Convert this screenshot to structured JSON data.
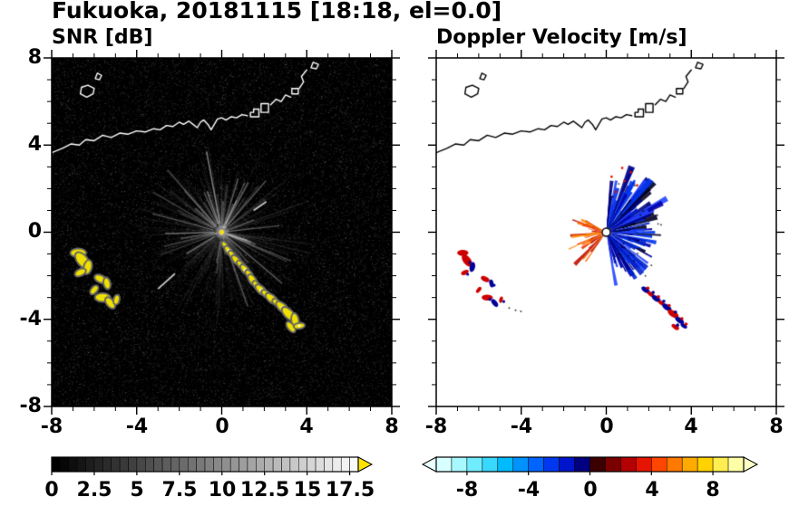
{
  "title": "Fukuoka, 20181115 [18:18, el=0.0]",
  "panels": [
    {
      "title": "SNR [dB]"
    },
    {
      "title": "Doppler Velocity [m/s]"
    }
  ],
  "axes": {
    "xlim": [
      -8,
      8
    ],
    "ylim": [
      -8,
      8
    ],
    "xtick_labels": [
      "-8",
      "-4",
      "0",
      "4",
      "8"
    ],
    "ytick_labels": [
      "8",
      "4",
      "0",
      "-4",
      "-8"
    ],
    "minor_tick_step": 1,
    "major_tick_step": 4
  },
  "colorbars": {
    "snr": {
      "min": 0,
      "max": 18,
      "segments": 36,
      "color_start": "#000000",
      "color_end": "#fafafa",
      "overflow_color": "#ffe400",
      "labels": [
        "0",
        "2.5",
        "5",
        "7.5",
        "10",
        "12.5",
        "15",
        "17.5"
      ],
      "label_values": [
        0,
        2.5,
        5,
        7.5,
        10,
        12.5,
        15,
        17.5
      ]
    },
    "velocity": {
      "min": -10,
      "max": 10,
      "segment_colors": [
        "#d8ffff",
        "#a8f8ff",
        "#70ecff",
        "#38d8ff",
        "#00bcff",
        "#0092ff",
        "#0064ff",
        "#0038f0",
        "#0014cc",
        "#000080",
        "#3c0000",
        "#7a0000",
        "#b40000",
        "#e61400",
        "#ff4600",
        "#ff7800",
        "#ffaa00",
        "#ffd200",
        "#ffee50",
        "#ffffa8"
      ],
      "under_color": "#eaffff",
      "over_color": "#ffffc8",
      "labels": [
        "-8",
        "-4",
        "0",
        "4",
        "8"
      ],
      "label_values": [
        -8,
        -4,
        0,
        4,
        8
      ]
    }
  },
  "coastline": {
    "paths": [
      {
        "closed": false,
        "pts": [
          [
            -8,
            3.65
          ],
          [
            -7.5,
            3.85
          ],
          [
            -7.1,
            4.05
          ],
          [
            -6.7,
            4.0
          ],
          [
            -6.4,
            4.25
          ],
          [
            -6.0,
            4.2
          ],
          [
            -5.6,
            4.45
          ],
          [
            -5.2,
            4.35
          ],
          [
            -4.8,
            4.55
          ],
          [
            -4.4,
            4.5
          ],
          [
            -4.0,
            4.65
          ],
          [
            -3.6,
            4.6
          ],
          [
            -3.2,
            4.75
          ],
          [
            -2.9,
            4.7
          ],
          [
            -2.6,
            4.9
          ],
          [
            -2.3,
            4.85
          ],
          [
            -2.0,
            5.05
          ],
          [
            -1.8,
            4.95
          ],
          [
            -1.55,
            5.1
          ],
          [
            -1.35,
            4.95
          ],
          [
            -1.15,
            4.8
          ],
          [
            -1.0,
            5.05
          ],
          [
            -0.85,
            5.15
          ],
          [
            -0.65,
            4.95
          ],
          [
            -0.5,
            4.7
          ],
          [
            -0.35,
            4.95
          ],
          [
            -0.2,
            5.2
          ],
          [
            0.0,
            5.25
          ],
          [
            0.2,
            5.15
          ],
          [
            0.45,
            5.3
          ],
          [
            0.7,
            5.25
          ],
          [
            0.95,
            5.4
          ],
          [
            1.2,
            5.35
          ]
        ]
      },
      {
        "closed": true,
        "pts": [
          [
            1.35,
            5.3
          ],
          [
            1.75,
            5.3
          ],
          [
            1.75,
            5.65
          ],
          [
            1.5,
            5.65
          ],
          [
            1.5,
            5.5
          ],
          [
            1.35,
            5.5
          ]
        ]
      },
      {
        "closed": true,
        "pts": [
          [
            1.85,
            5.5
          ],
          [
            2.2,
            5.5
          ],
          [
            2.2,
            5.9
          ],
          [
            1.85,
            5.9
          ]
        ]
      },
      {
        "closed": false,
        "pts": [
          [
            2.3,
            5.85
          ],
          [
            2.55,
            6.1
          ],
          [
            2.8,
            6.0
          ],
          [
            3.0,
            6.3
          ],
          [
            3.25,
            6.2
          ]
        ]
      },
      {
        "closed": true,
        "pts": [
          [
            3.3,
            6.35
          ],
          [
            3.6,
            6.35
          ],
          [
            3.6,
            6.6
          ],
          [
            3.3,
            6.6
          ]
        ]
      },
      {
        "closed": false,
        "pts": [
          [
            3.65,
            6.6
          ],
          [
            3.85,
            6.9
          ],
          [
            3.75,
            7.15
          ],
          [
            4.0,
            7.45
          ]
        ]
      },
      {
        "closed": true,
        "pts": [
          [
            4.2,
            7.55
          ],
          [
            4.45,
            7.5
          ],
          [
            4.55,
            7.7
          ],
          [
            4.3,
            7.8
          ]
        ]
      },
      {
        "closed": true,
        "pts": [
          [
            -6.65,
            6.35
          ],
          [
            -6.35,
            6.2
          ],
          [
            -6.05,
            6.35
          ],
          [
            -6.0,
            6.6
          ],
          [
            -6.3,
            6.75
          ],
          [
            -6.6,
            6.65
          ]
        ]
      },
      {
        "closed": true,
        "pts": [
          [
            -5.95,
            7.05
          ],
          [
            -5.75,
            7.0
          ],
          [
            -5.65,
            7.2
          ],
          [
            -5.85,
            7.3
          ]
        ]
      }
    ]
  },
  "chart_data": [
    {
      "type": "heatmap",
      "title": "SNR [dB]",
      "units": "dB",
      "xlim": [
        -8,
        8
      ],
      "ylim": [
        -8,
        8
      ],
      "value_range": [
        0,
        17.5
      ],
      "radar_center": [
        0,
        0
      ],
      "features": {
        "background": "black sea-clutter speckle",
        "coastline_color": "#ffffff",
        "echo_color": "#f0e000",
        "spokes": {
          "faint_count": 260,
          "bright_count": 44,
          "max_r": 4.2
        },
        "bright_dashes": [
          [
            -2.2,
            -1.9,
            -3.0,
            -2.6
          ],
          [
            1.5,
            1.0,
            2.1,
            1.4
          ]
        ],
        "echo_chain": [
          [
            0.15,
            -0.6,
            0.1
          ],
          [
            0.32,
            -0.85,
            0.13
          ],
          [
            0.5,
            -1.05,
            0.12
          ],
          [
            0.68,
            -1.28,
            0.14
          ],
          [
            0.9,
            -1.5,
            0.12
          ],
          [
            1.1,
            -1.72,
            0.15
          ],
          [
            1.3,
            -1.95,
            0.13
          ],
          [
            1.45,
            -2.2,
            0.16
          ],
          [
            1.65,
            -2.45,
            0.13
          ],
          [
            1.85,
            -2.65,
            0.17
          ],
          [
            2.1,
            -2.85,
            0.14
          ],
          [
            2.35,
            -3.05,
            0.18
          ],
          [
            2.6,
            -3.25,
            0.13
          ],
          [
            2.85,
            -3.45,
            0.19
          ],
          [
            3.15,
            -3.75,
            0.22
          ],
          [
            3.45,
            -4.05,
            0.18
          ],
          [
            3.25,
            -4.35,
            0.15
          ],
          [
            3.65,
            -4.3,
            0.13
          ]
        ],
        "west_cluster": [
          [
            -6.75,
            -0.95,
            0.22
          ],
          [
            -6.55,
            -1.3,
            0.28
          ],
          [
            -6.3,
            -1.6,
            0.2
          ],
          [
            -6.65,
            -1.85,
            0.16
          ],
          [
            -5.7,
            -2.15,
            0.18
          ],
          [
            -5.4,
            -2.35,
            0.16
          ],
          [
            -6.0,
            -2.65,
            0.14
          ],
          [
            -5.6,
            -3.0,
            0.22
          ],
          [
            -5.25,
            -3.25,
            0.18
          ],
          [
            -4.95,
            -3.1,
            0.13
          ]
        ]
      }
    },
    {
      "type": "heatmap",
      "title": "Doppler Velocity [m/s]",
      "units": "m/s",
      "xlim": [
        -8,
        8
      ],
      "ylim": [
        -8,
        8
      ],
      "value_range": [
        -10,
        10
      ],
      "features": {
        "background": "white",
        "coastline_color": "#000000",
        "blue_fan": {
          "center": [
            0,
            0
          ],
          "angle_deg": [
            -80,
            85
          ],
          "count": 240,
          "max_r": 2.6,
          "boost": [
            15,
            75
          ],
          "colors": [
            "#0033ee",
            "#0022cc",
            "#0000aa",
            "#000088",
            "#2244ff",
            "#000022"
          ]
        },
        "orange_fan": {
          "center": [
            0,
            0
          ],
          "angle_deg": [
            150,
            235
          ],
          "count": 75,
          "max_r": 1.7,
          "boost": [
            190,
            232
          ],
          "colors": [
            "#ff8800",
            "#ff6600",
            "#ee3300",
            "#bb1100"
          ]
        },
        "red_specks": [
          [
            0.4,
            1.9
          ],
          [
            0.8,
            2.4
          ],
          [
            1.1,
            2.8
          ],
          [
            0.2,
            2.6
          ],
          [
            1.4,
            2.2
          ],
          [
            0.7,
            3.0
          ]
        ],
        "small_dots": [
          [
            -4.6,
            -3.45
          ],
          [
            -4.3,
            -3.55
          ],
          [
            -4.05,
            -3.6
          ]
        ],
        "west_cluster_colors": [
          "#cc0000",
          "#000099"
        ],
        "chain_colors": [
          "#cc0000",
          "#000099"
        ],
        "center_marker": {
          "fill": "#ffffff",
          "stroke": "#000000",
          "radius_px": 4.5
        }
      }
    }
  ]
}
